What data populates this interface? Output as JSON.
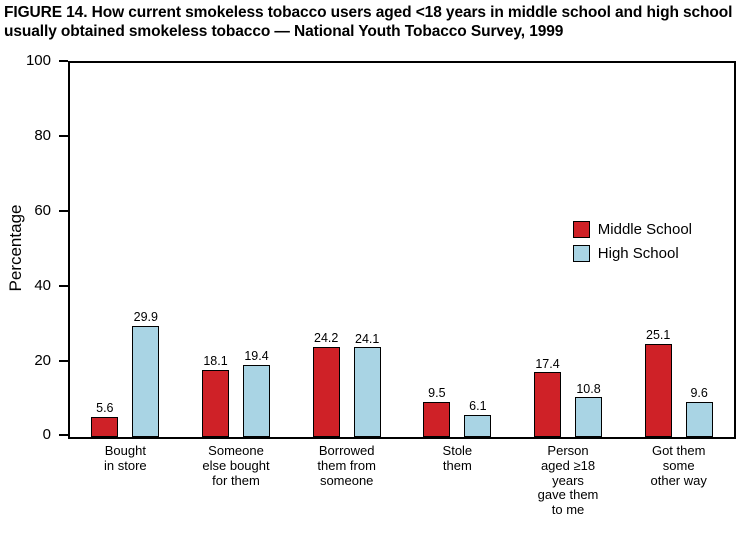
{
  "title": "FIGURE 14. How current smokeless tobacco users aged <18 years in middle school and high school usually obtained smokeless tobacco — National Youth Tobacco Survey, 1999",
  "chart_data": {
    "type": "bar",
    "title": "",
    "xlabel": "",
    "ylabel": "Percentage",
    "ylim": [
      0,
      100
    ],
    "yticks": [
      0,
      20,
      40,
      60,
      80,
      100
    ],
    "grid": false,
    "legend_position": "inside-right-middle",
    "categories": [
      "Bought\nin store",
      "Someone\nelse bought\nfor them",
      "Borrowed\nthem from\nsomeone",
      "Stole\nthem",
      "Person\naged ≥18\nyears\ngave them\nto me",
      "Got them\nsome\nother way"
    ],
    "series": [
      {
        "name": "Middle School",
        "color": "#cf2127",
        "values": [
          5.6,
          18.1,
          24.2,
          9.5,
          17.4,
          25.1
        ]
      },
      {
        "name": "High School",
        "color": "#a9d4e4",
        "values": [
          29.9,
          19.4,
          24.1,
          6.1,
          10.8,
          9.6
        ]
      }
    ]
  }
}
